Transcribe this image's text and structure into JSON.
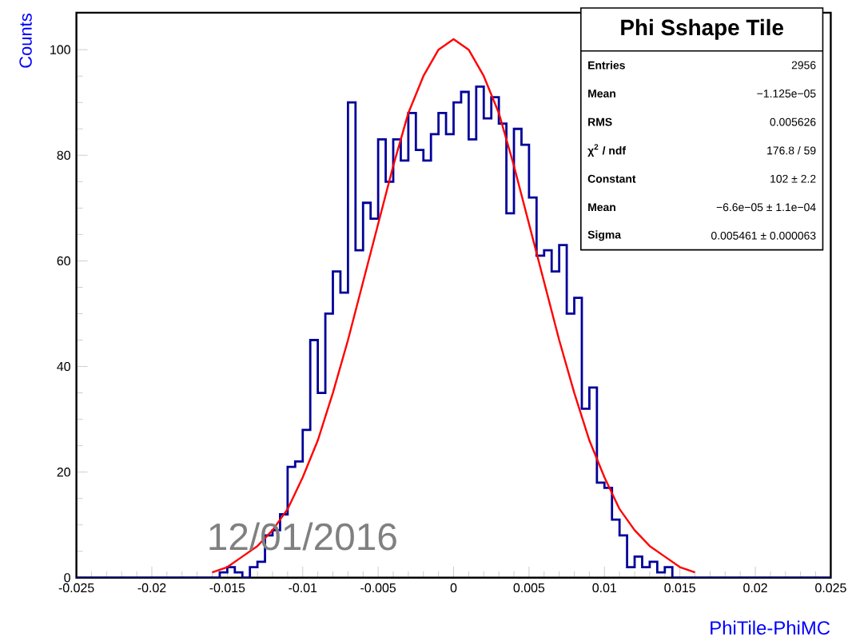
{
  "chart_data": {
    "type": "histogram",
    "title": "Phi Sshape Tile",
    "xlabel": "PhiTile-PhiMC",
    "ylabel": "Counts",
    "bins": [
      -0.025,
      -0.0245,
      -0.024,
      -0.0235,
      -0.023,
      -0.0225,
      -0.022,
      -0.0215,
      -0.021,
      -0.0205,
      -0.02,
      -0.0195,
      -0.019,
      -0.0185,
      -0.018,
      -0.0175,
      -0.017,
      -0.0165,
      -0.016,
      -0.0155,
      -0.015,
      -0.0145,
      -0.014,
      -0.0135,
      -0.013,
      -0.0125,
      -0.012,
      -0.0115,
      -0.011,
      -0.0105,
      -0.01,
      -0.0095,
      -0.009,
      -0.0085,
      -0.008,
      -0.0075,
      -0.007,
      -0.0065,
      -0.006,
      -0.0055,
      -0.005,
      -0.0045,
      -0.004,
      -0.0035,
      -0.003,
      -0.0025,
      -0.002,
      -0.0015,
      -0.001,
      -0.0005,
      0,
      0.0005,
      0.001,
      0.0015,
      0.002,
      0.0025,
      0.003,
      0.0035,
      0.004,
      0.0045,
      0.005,
      0.0055,
      0.006,
      0.0065,
      0.007,
      0.0075,
      0.008,
      0.0085,
      0.009,
      0.0095,
      0.01,
      0.0105,
      0.011,
      0.0115,
      0.012,
      0.0125,
      0.013,
      0.0135,
      0.014,
      0.0145,
      0.015,
      0.0155,
      0.016,
      0.0165,
      0.017,
      0.0175,
      0.018,
      0.0185,
      0.019,
      0.0195,
      0.02,
      0.0205,
      0.021,
      0.0215,
      0.022,
      0.0225,
      0.023,
      0.0235,
      0.024,
      0.0245,
      0.025
    ],
    "series": [
      {
        "type": "histogram",
        "color": "#000099",
        "values": [
          0,
          0,
          0,
          0,
          0,
          0,
          0,
          0,
          0,
          0,
          0,
          0,
          0,
          0,
          0,
          0,
          0,
          0,
          0,
          1,
          2,
          1,
          0,
          2,
          3,
          8,
          9,
          12,
          21,
          22,
          28,
          45,
          35,
          50,
          58,
          54,
          90,
          62,
          71,
          68,
          83,
          75,
          83,
          79,
          88,
          81,
          79,
          84,
          88,
          84,
          90,
          92,
          83,
          93,
          87,
          91,
          86,
          69,
          85,
          82,
          72,
          61,
          62,
          58,
          63,
          50,
          53,
          32,
          36,
          18,
          17,
          11,
          8,
          2,
          4,
          2,
          3,
          1,
          2,
          0,
          0,
          0,
          0,
          0,
          0,
          0,
          0,
          0,
          0,
          0,
          0,
          0,
          0,
          0,
          0,
          0,
          0,
          0,
          0,
          0
        ]
      },
      {
        "type": "line",
        "color": "#ff0000",
        "x": [
          -0.016,
          -0.015,
          -0.014,
          -0.013,
          -0.012,
          -0.011,
          -0.01,
          -0.009,
          -0.008,
          -0.007,
          -0.006,
          -0.005,
          -0.004,
          -0.003,
          -0.002,
          -0.001,
          0,
          0.001,
          0.002,
          0.003,
          0.004,
          0.005,
          0.006,
          0.007,
          0.008,
          0.009,
          0.01,
          0.011,
          0.012,
          0.013,
          0.014,
          0.015,
          0.016
        ],
        "values": [
          1,
          2,
          4,
          6,
          9,
          13,
          19,
          26,
          35,
          45,
          56,
          67,
          78,
          88,
          95,
          100,
          102,
          100,
          95,
          88,
          78,
          67,
          56,
          45,
          35,
          26,
          19,
          13,
          9,
          6,
          4,
          2,
          1
        ]
      }
    ],
    "xlim": [
      -0.025,
      0.025
    ],
    "ylim": [
      0,
      107
    ],
    "xticks": [
      -0.025,
      -0.02,
      -0.015,
      -0.01,
      -0.005,
      0,
      0.005,
      0.01,
      0.015,
      0.02,
      0.025
    ],
    "yticks": [
      0,
      20,
      40,
      60,
      80,
      100
    ],
    "grid": false,
    "marker": "none",
    "line_style": "solid",
    "annotations": [
      "Entries",
      "2956",
      "Mean",
      "−1.125e−05",
      "RMS",
      "0.005626",
      "χ$^{2}$ / ndf",
      "176.8 / 59",
      "Constant",
      "102 ± 2.2",
      "Mean",
      "−6.6e−05 ± 1.1e−04",
      "Sigma",
      "0.005461 ± 0.000063",
      "12/01/2016"
    ]
  }
}
